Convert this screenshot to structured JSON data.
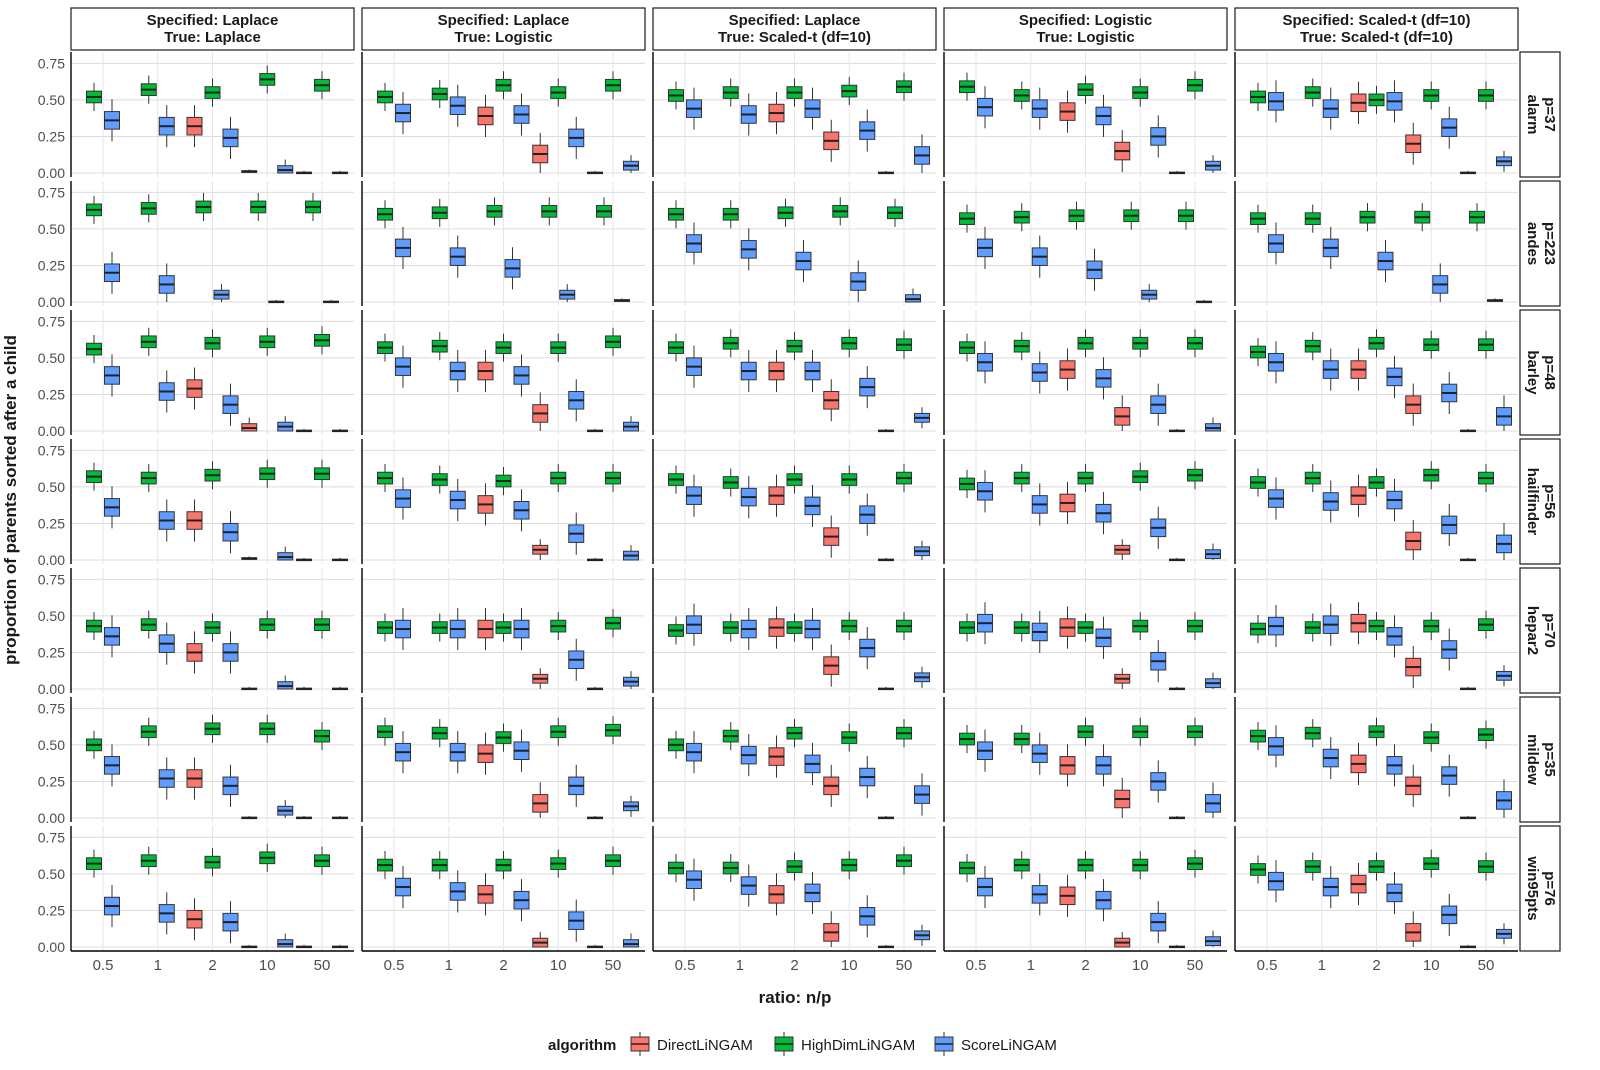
{
  "chart_data": {
    "type": "boxplot",
    "ylabel": "proportion of parents sorted after a child",
    "xlabel": "ratio: n/p",
    "ylim": [
      0,
      0.8
    ],
    "yticks": [
      0,
      0.25,
      0.5,
      0.75
    ],
    "ytick_labels": [
      "0.00",
      "0.25",
      "0.50",
      "0.75"
    ],
    "categories": [
      "0.5",
      "1",
      "2",
      "10",
      "50"
    ],
    "col_facets": [
      {
        "line1": "Specified:  Laplace",
        "line2": "True: Laplace"
      },
      {
        "line1": "Specified:  Laplace",
        "line2": "True: Logistic"
      },
      {
        "line1": "Specified:  Laplace",
        "line2": "True: Scaled-t (df=10)"
      },
      {
        "line1": "Specified:  Logistic",
        "line2": "True: Logistic"
      },
      {
        "line1": "Specified:  Scaled-t (df=10)",
        "line2": "True: Scaled-t (df=10)"
      }
    ],
    "row_facets": [
      {
        "line1": "alarm",
        "line2": "p=37"
      },
      {
        "line1": "andes",
        "line2": "p=223"
      },
      {
        "line1": "barley",
        "line2": "p=48"
      },
      {
        "line1": "hailfinder",
        "line2": "p=56"
      },
      {
        "line1": "hepar2",
        "line2": "p=70"
      },
      {
        "line1": "mildew",
        "line2": "p=35"
      },
      {
        "line1": "win95pts",
        "line2": "p=76"
      }
    ],
    "legend": {
      "title": "algorithm",
      "position": "bottom",
      "entries": [
        {
          "name": "DirectLiNGAM",
          "color": "#F8766D"
        },
        {
          "name": "HighDimLiNGAM",
          "color": "#00BA38"
        },
        {
          "name": "ScoreLiNGAM",
          "color": "#619CFF"
        }
      ]
    },
    "medians": {
      "note_order": "rows x cols x categories x [DirectLiNGAM, HighDimLiNGAM, ScoreLiNGAM]; null = not shown",
      "alarm": [
        [
          [
            null,
            0.52,
            0.36
          ],
          [
            null,
            0.57,
            0.32
          ],
          [
            0.32,
            0.55,
            0.24
          ],
          [
            0.01,
            0.64,
            0.02
          ],
          [
            0.0,
            0.6,
            0.0
          ]
        ],
        [
          [
            null,
            0.52,
            0.41
          ],
          [
            null,
            0.54,
            0.46
          ],
          [
            0.39,
            0.6,
            0.4
          ],
          [
            0.13,
            0.55,
            0.24
          ],
          [
            0.0,
            0.6,
            0.05
          ]
        ],
        [
          [
            null,
            0.53,
            0.44
          ],
          [
            null,
            0.55,
            0.4
          ],
          [
            0.41,
            0.55,
            0.44
          ],
          [
            0.22,
            0.56,
            0.29
          ],
          [
            0.0,
            0.59,
            0.12
          ]
        ],
        [
          [
            null,
            0.59,
            0.45
          ],
          [
            null,
            0.53,
            0.44
          ],
          [
            0.42,
            0.57,
            0.39
          ],
          [
            0.15,
            0.55,
            0.25
          ],
          [
            0.0,
            0.6,
            0.05
          ]
        ],
        [
          [
            null,
            0.52,
            0.49
          ],
          [
            null,
            0.55,
            0.44
          ],
          [
            0.48,
            0.5,
            0.49
          ],
          [
            0.2,
            0.53,
            0.31
          ],
          [
            0.0,
            0.53,
            0.08
          ]
        ]
      ],
      "andes": [
        [
          [
            null,
            0.63,
            0.2
          ],
          [
            null,
            0.64,
            0.12
          ],
          [
            null,
            0.65,
            0.05
          ],
          [
            null,
            0.65,
            0.0
          ],
          [
            null,
            0.65,
            0.0
          ]
        ],
        [
          [
            null,
            0.6,
            0.37
          ],
          [
            null,
            0.61,
            0.31
          ],
          [
            null,
            0.62,
            0.23
          ],
          [
            null,
            0.62,
            0.05
          ],
          [
            null,
            0.62,
            0.01
          ]
        ],
        [
          [
            null,
            0.6,
            0.4
          ],
          [
            null,
            0.6,
            0.36
          ],
          [
            null,
            0.61,
            0.28
          ],
          [
            null,
            0.62,
            0.14
          ],
          [
            null,
            0.61,
            0.02
          ]
        ],
        [
          [
            null,
            0.57,
            0.37
          ],
          [
            null,
            0.58,
            0.31
          ],
          [
            null,
            0.59,
            0.22
          ],
          [
            null,
            0.59,
            0.05
          ],
          [
            null,
            0.59,
            0.0
          ]
        ],
        [
          [
            null,
            0.57,
            0.4
          ],
          [
            null,
            0.57,
            0.37
          ],
          [
            null,
            0.58,
            0.28
          ],
          [
            null,
            0.58,
            0.12
          ],
          [
            null,
            0.58,
            0.01
          ]
        ]
      ],
      "barley": [
        [
          [
            null,
            0.56,
            0.38
          ],
          [
            null,
            0.61,
            0.27
          ],
          [
            0.29,
            0.6,
            0.18
          ],
          [
            0.02,
            0.61,
            0.03
          ],
          [
            0.0,
            0.62,
            0.0
          ]
        ],
        [
          [
            null,
            0.57,
            0.44
          ],
          [
            null,
            0.58,
            0.41
          ],
          [
            0.41,
            0.57,
            0.38
          ],
          [
            0.12,
            0.57,
            0.21
          ],
          [
            0.0,
            0.61,
            0.03
          ]
        ],
        [
          [
            null,
            0.57,
            0.44
          ],
          [
            null,
            0.6,
            0.41
          ],
          [
            0.41,
            0.58,
            0.41
          ],
          [
            0.21,
            0.6,
            0.3
          ],
          [
            0.0,
            0.59,
            0.09
          ]
        ],
        [
          [
            null,
            0.57,
            0.47
          ],
          [
            null,
            0.58,
            0.4
          ],
          [
            0.42,
            0.6,
            0.36
          ],
          [
            0.1,
            0.6,
            0.18
          ],
          [
            0.0,
            0.6,
            0.02
          ]
        ],
        [
          [
            null,
            0.54,
            0.47
          ],
          [
            null,
            0.58,
            0.42
          ],
          [
            0.42,
            0.6,
            0.37
          ],
          [
            0.18,
            0.59,
            0.26
          ],
          [
            0.0,
            0.59,
            0.1
          ]
        ]
      ],
      "hailfinder": [
        [
          [
            null,
            0.57,
            0.36
          ],
          [
            null,
            0.56,
            0.27
          ],
          [
            0.27,
            0.58,
            0.19
          ],
          [
            0.01,
            0.59,
            0.02
          ],
          [
            0.0,
            0.59,
            0.0
          ]
        ],
        [
          [
            null,
            0.56,
            0.42
          ],
          [
            null,
            0.55,
            0.41
          ],
          [
            0.38,
            0.54,
            0.34
          ],
          [
            0.07,
            0.56,
            0.18
          ],
          [
            0.0,
            0.56,
            0.03
          ]
        ],
        [
          [
            null,
            0.55,
            0.44
          ],
          [
            null,
            0.53,
            0.43
          ],
          [
            0.44,
            0.55,
            0.37
          ],
          [
            0.16,
            0.55,
            0.31
          ],
          [
            0.0,
            0.56,
            0.06
          ]
        ],
        [
          [
            null,
            0.52,
            0.47
          ],
          [
            null,
            0.56,
            0.38
          ],
          [
            0.39,
            0.56,
            0.32
          ],
          [
            0.07,
            0.57,
            0.22
          ],
          [
            0.0,
            0.58,
            0.04
          ]
        ],
        [
          [
            null,
            0.53,
            0.42
          ],
          [
            null,
            0.56,
            0.4
          ],
          [
            0.44,
            0.53,
            0.41
          ],
          [
            0.13,
            0.58,
            0.24
          ],
          [
            0.0,
            0.56,
            0.11
          ]
        ]
      ],
      "hepar2": [
        [
          [
            null,
            0.43,
            0.36
          ],
          [
            null,
            0.44,
            0.31
          ],
          [
            0.25,
            0.42,
            0.25
          ],
          [
            0.0,
            0.44,
            0.02
          ],
          [
            0.0,
            0.44,
            0.0
          ]
        ],
        [
          [
            null,
            0.42,
            0.41
          ],
          [
            null,
            0.42,
            0.41
          ],
          [
            0.41,
            0.42,
            0.41
          ],
          [
            0.07,
            0.43,
            0.2
          ],
          [
            0.0,
            0.45,
            0.05
          ]
        ],
        [
          [
            null,
            0.4,
            0.44
          ],
          [
            null,
            0.42,
            0.41
          ],
          [
            0.42,
            0.42,
            0.41
          ],
          [
            0.16,
            0.43,
            0.28
          ],
          [
            0.0,
            0.43,
            0.08
          ]
        ],
        [
          [
            null,
            0.42,
            0.45
          ],
          [
            null,
            0.42,
            0.39
          ],
          [
            0.42,
            0.42,
            0.35
          ],
          [
            0.07,
            0.43,
            0.19
          ],
          [
            0.0,
            0.43,
            0.04
          ]
        ],
        [
          [
            null,
            0.41,
            0.43
          ],
          [
            null,
            0.42,
            0.44
          ],
          [
            0.45,
            0.43,
            0.36
          ],
          [
            0.15,
            0.43,
            0.27
          ],
          [
            0.0,
            0.44,
            0.09
          ]
        ]
      ],
      "mildew": [
        [
          [
            null,
            0.5,
            0.36
          ],
          [
            null,
            0.59,
            0.27
          ],
          [
            0.27,
            0.61,
            0.22
          ],
          [
            0.0,
            0.61,
            0.05
          ],
          [
            0.0,
            0.56,
            0.0
          ]
        ],
        [
          [
            null,
            0.59,
            0.45
          ],
          [
            null,
            0.58,
            0.45
          ],
          [
            0.44,
            0.55,
            0.46
          ],
          [
            0.1,
            0.59,
            0.22
          ],
          [
            0.0,
            0.6,
            0.08
          ]
        ],
        [
          [
            null,
            0.5,
            0.45
          ],
          [
            null,
            0.56,
            0.43
          ],
          [
            0.42,
            0.58,
            0.37
          ],
          [
            0.22,
            0.55,
            0.28
          ],
          [
            0.0,
            0.58,
            0.16
          ]
        ],
        [
          [
            null,
            0.54,
            0.46
          ],
          [
            null,
            0.54,
            0.44
          ],
          [
            0.36,
            0.59,
            0.36
          ],
          [
            0.13,
            0.59,
            0.25
          ],
          [
            0.0,
            0.59,
            0.1
          ]
        ],
        [
          [
            null,
            0.56,
            0.49
          ],
          [
            null,
            0.58,
            0.41
          ],
          [
            0.37,
            0.59,
            0.36
          ],
          [
            0.22,
            0.55,
            0.29
          ],
          [
            0.0,
            0.57,
            0.12
          ]
        ]
      ],
      "win95pts": [
        [
          [
            null,
            0.57,
            0.28
          ],
          [
            null,
            0.59,
            0.23
          ],
          [
            0.19,
            0.58,
            0.17
          ],
          [
            0.0,
            0.61,
            0.02
          ],
          [
            0.0,
            0.59,
            0.0
          ]
        ],
        [
          [
            null,
            0.56,
            0.41
          ],
          [
            null,
            0.56,
            0.38
          ],
          [
            0.36,
            0.56,
            0.32
          ],
          [
            0.03,
            0.57,
            0.18
          ],
          [
            0.0,
            0.59,
            0.02
          ]
        ],
        [
          [
            null,
            0.54,
            0.46
          ],
          [
            null,
            0.54,
            0.42
          ],
          [
            0.36,
            0.55,
            0.37
          ],
          [
            0.1,
            0.56,
            0.21
          ],
          [
            0.0,
            0.59,
            0.08
          ]
        ],
        [
          [
            null,
            0.54,
            0.41
          ],
          [
            null,
            0.56,
            0.36
          ],
          [
            0.35,
            0.56,
            0.32
          ],
          [
            0.03,
            0.56,
            0.17
          ],
          [
            0.0,
            0.57,
            0.04
          ]
        ],
        [
          [
            null,
            0.53,
            0.45
          ],
          [
            null,
            0.55,
            0.41
          ],
          [
            0.43,
            0.55,
            0.37
          ],
          [
            0.1,
            0.57,
            0.22
          ],
          [
            0.0,
            0.55,
            0.09
          ]
        ]
      ]
    }
  }
}
